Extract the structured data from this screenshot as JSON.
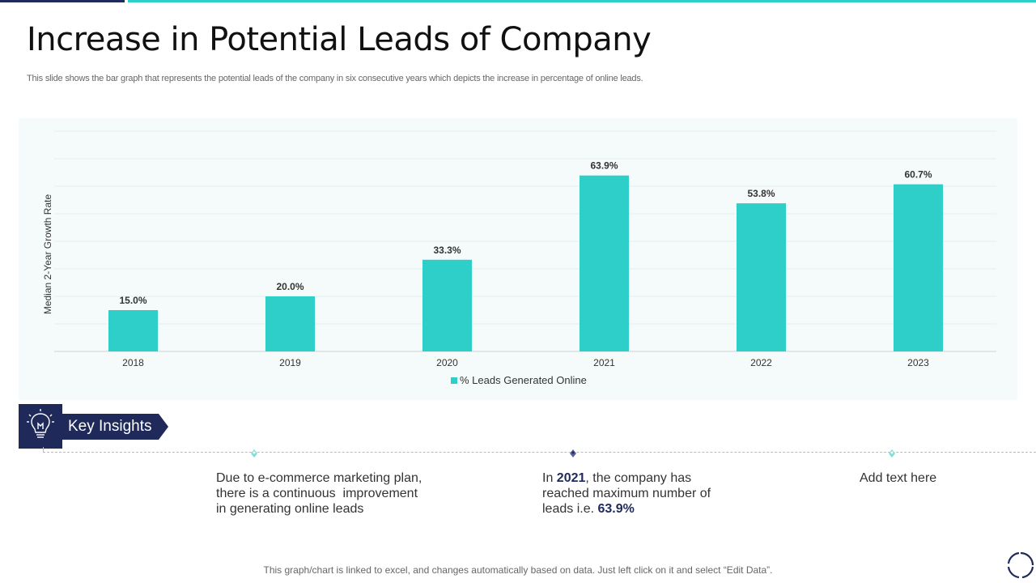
{
  "page": {
    "title": "Increase in Potential Leads of Company",
    "subtitle": "This slide shows the bar graph that represents the potential leads of the company in six consecutive years which depicts the increase in percentage of online leads.",
    "footer_note": "This graph/chart is linked to excel, and changes automatically based on data. Just left click on it and select “Edit Data”."
  },
  "colors": {
    "accent_teal": "#2ecfc9",
    "brand_navy": "#1f2a5a",
    "marker_light": "#7fdcd8"
  },
  "chart_data": {
    "type": "bar",
    "ylabel": "Median 2-Year Growth Rate",
    "xlabel": "",
    "categories": [
      "2018",
      "2019",
      "2020",
      "2021",
      "2022",
      "2023"
    ],
    "series": [
      {
        "name": "% Leads Generated Online",
        "values": [
          15.0,
          20.0,
          33.3,
          63.9,
          53.8,
          60.7
        ],
        "labels": [
          "15.0%",
          "20.0%",
          "33.3%",
          "63.9%",
          "53.8%",
          "60.7%"
        ]
      }
    ],
    "ylim": [
      0,
      80
    ],
    "grid": true,
    "legend": "bottom-center"
  },
  "insights": {
    "heading": "Key Insights",
    "icon": "lightbulb-icon",
    "items": [
      {
        "marker_icon": "diamond-pin-icon",
        "lines": [
          "Due to e-commerce marketing plan,",
          "there is a continuous  improvement",
          "in generating online leads"
        ]
      },
      {
        "marker_icon": "diamond-pin-icon",
        "line1_prefix": "In ",
        "line1_bold": "2021",
        "line1_suffix": ", the company has",
        "line2": "reached maximum number of",
        "line3_prefix": "leads i.e. ",
        "line3_bold": "63.9%"
      },
      {
        "marker_icon": "diamond-pin-icon",
        "lines": [
          "Add text here"
        ]
      }
    ]
  }
}
